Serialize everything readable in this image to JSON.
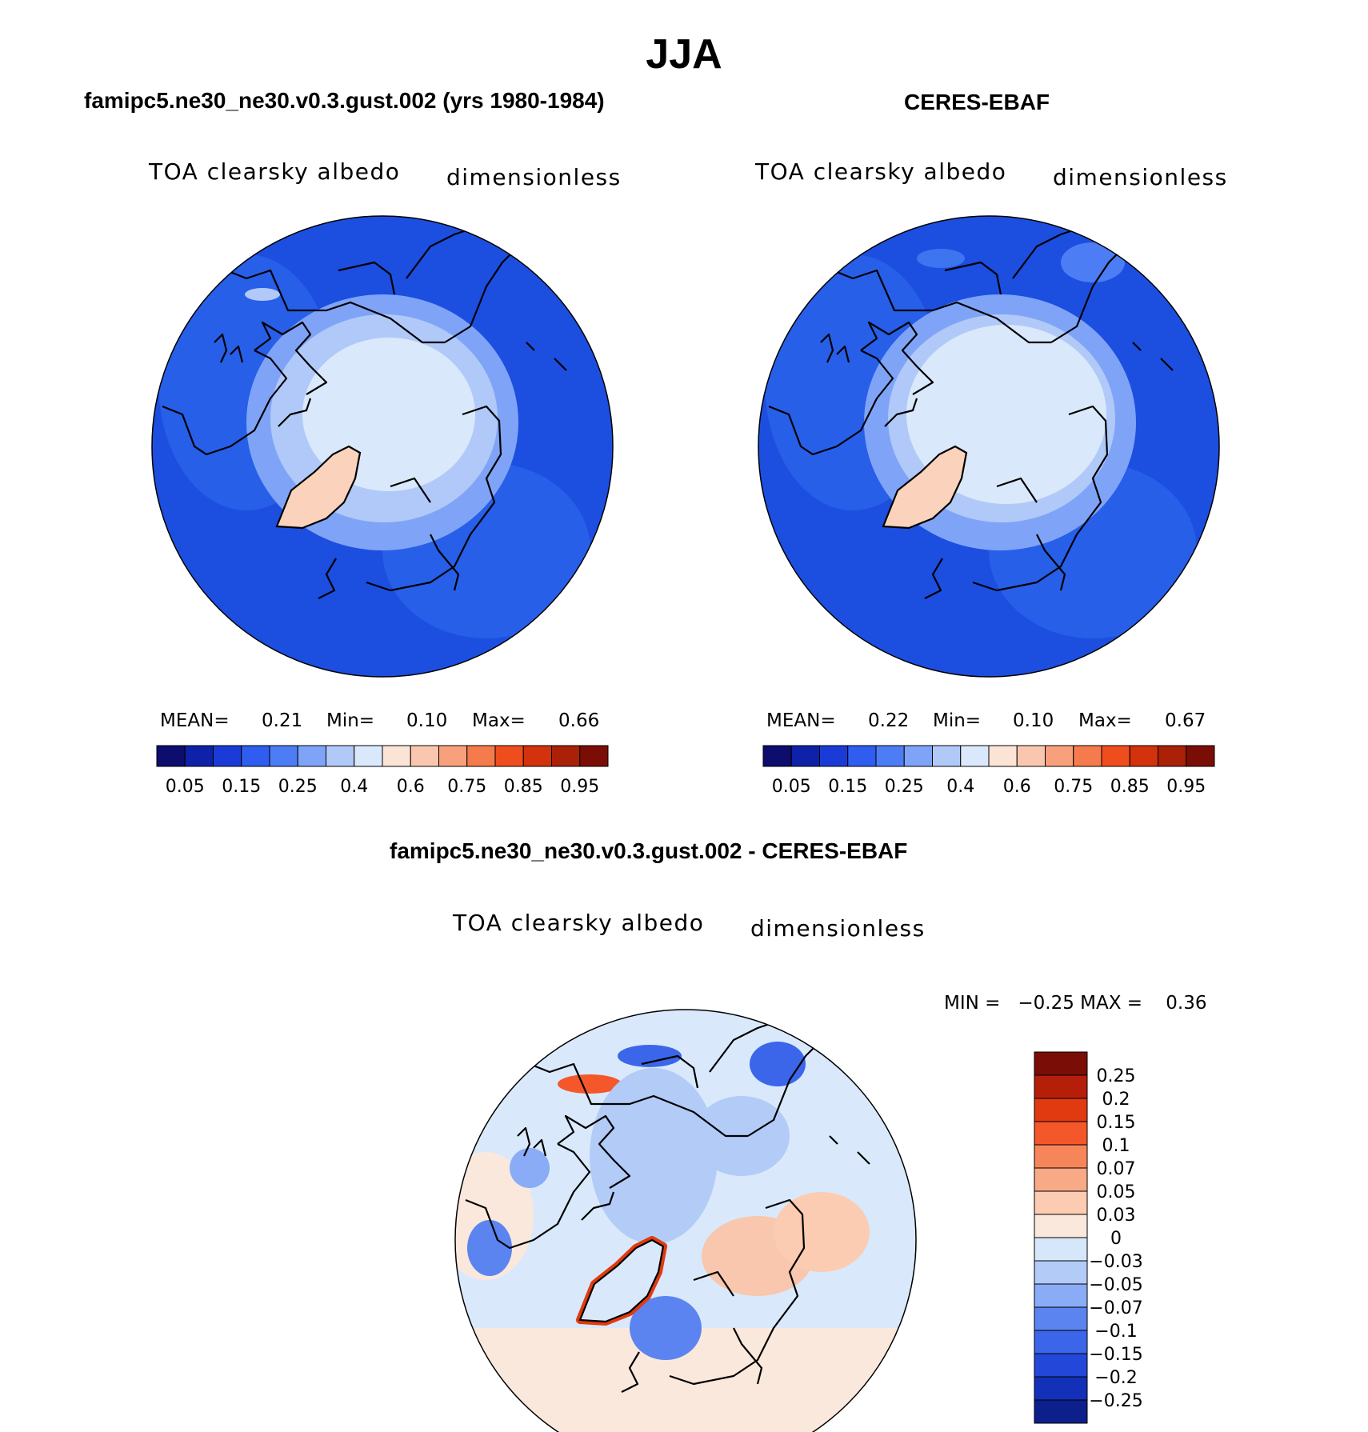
{
  "main_title": "JJA",
  "panels": [
    {
      "title": "famipc5.ne30_ne30.v0.3.gust.002 (yrs 1980-1984)",
      "variable": "TOA clearsky albedo",
      "units": "dimensionless",
      "stats": {
        "mean_label": "MEAN=",
        "mean": "0.21",
        "min_label": "Min=",
        "min": "0.10",
        "max_label": "Max=",
        "max": "0.66"
      }
    },
    {
      "title": "CERES-EBAF",
      "variable": "TOA clearsky albedo",
      "units": "dimensionless",
      "stats": {
        "mean_label": "MEAN=",
        "mean": "0.22",
        "min_label": "Min=",
        "min": "0.10",
        "max_label": "Max=",
        "max": "0.67"
      }
    }
  ],
  "difference": {
    "title": "famipc5.ne30_ne30.v0.3.gust.002 - CERES-EBAF",
    "variable": "TOA clearsky albedo",
    "units": "dimensionless",
    "range_text": "MIN =   −0.25 MAX =    0.36"
  },
  "colorbars": {
    "main_colors": [
      "#0d0d6e",
      "#0d22a8",
      "#1a3bd6",
      "#2e5df0",
      "#4d7df5",
      "#7fa4f7",
      "#b1c9f8",
      "#d9e9fb",
      "#fbe4d6",
      "#f8c7ad",
      "#f7a07b",
      "#f57a4c",
      "#f04d1e",
      "#d2320c",
      "#aa2108",
      "#7a0d06"
    ],
    "main_tick_labels": [
      "0.05",
      "0.15",
      "0.25",
      "0.4",
      "0.6",
      "0.75",
      "0.85",
      "0.95"
    ],
    "diff_colors": [
      "#7a0d06",
      "#b51f0a",
      "#e13a10",
      "#f4582a",
      "#f7855a",
      "#f8a986",
      "#fbccb2",
      "#fbe8dc",
      "#d7e7fa",
      "#b3cbf7",
      "#8aabf5",
      "#5b84f0",
      "#3b66ea",
      "#2347d8",
      "#1231b8",
      "#0c1f8a"
    ],
    "diff_tick_labels": [
      "0.25",
      "0.2",
      "0.15",
      "0.1",
      "0.07",
      "0.05",
      "0.03",
      "0",
      "−0.03",
      "−0.05",
      "−0.07",
      "−0.1",
      "−0.15",
      "−0.2",
      "−0.25"
    ]
  },
  "map_colors": {
    "ocean_main": "#1c4fe0",
    "ocean_sea": "#2a63ea",
    "arctic_outer": "#7fa4f7",
    "arctic_mid": "#b1c9f8",
    "arctic_core": "#d9e9fb",
    "greenland": "#fbd3bd",
    "diff_bg": "#d9e9fb",
    "diff_warm": "#fbe8dc",
    "diff_red": "#e13a10",
    "diff_blue": "#3b66ea",
    "coast": "#000000"
  }
}
